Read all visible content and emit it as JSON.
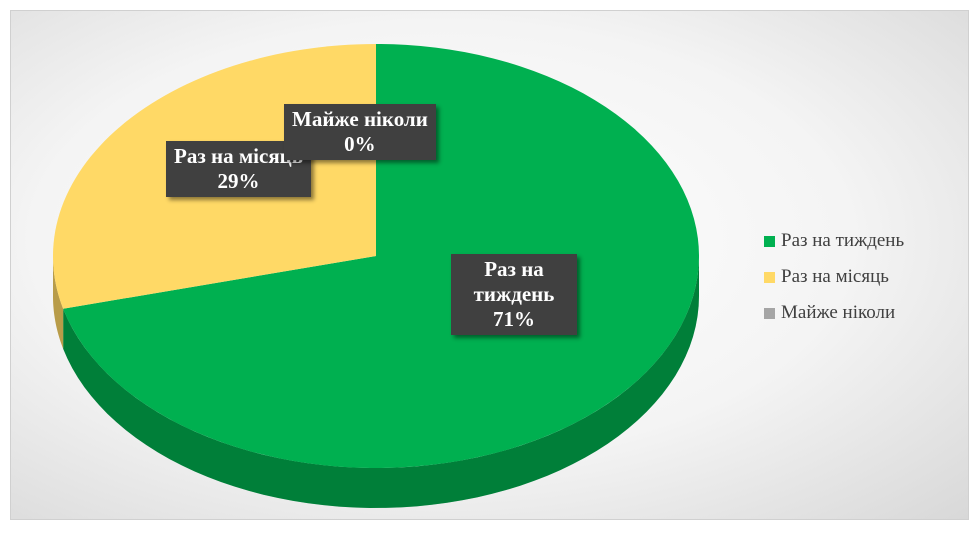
{
  "chart_data": {
    "type": "pie3d",
    "categories": [
      "Раз на тиждень",
      "Раз на місяць",
      "Майже ніколи"
    ],
    "values": [
      71,
      29,
      0
    ],
    "value_labels": [
      "71%",
      "29%",
      "0%"
    ],
    "colors": [
      "#00b050",
      "#ffd966",
      "#a5a5a5"
    ],
    "legend": "right"
  }
}
